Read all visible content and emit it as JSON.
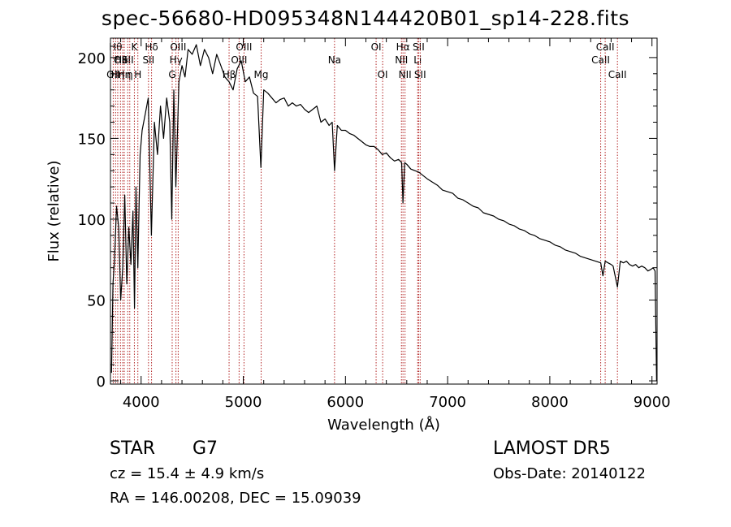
{
  "chart_data": {
    "type": "line",
    "title": "spec-56680-HD095348N144420B01_sp14-228.fits",
    "xlabel": "Wavelength (Å)",
    "ylabel": "Flux (relative)",
    "xlim": [
      3700,
      9050
    ],
    "ylim": [
      -2,
      212
    ],
    "x_ticks": [
      4000,
      5000,
      6000,
      7000,
      8000,
      9000
    ],
    "y_ticks": [
      0,
      50,
      100,
      150,
      200
    ],
    "grid": false,
    "line_color": "#000000",
    "marker_color": "#b22222",
    "series": [
      {
        "x": [
          3710,
          3725,
          3740,
          3760,
          3780,
          3800,
          3820,
          3840,
          3860,
          3880,
          3900,
          3920,
          3935,
          3950,
          3968,
          3990,
          4010,
          4040,
          4070,
          4101,
          4130,
          4160,
          4190,
          4220,
          4250,
          4280,
          4300,
          4320,
          4340,
          4370,
          4400,
          4430,
          4460,
          4500,
          4540,
          4580,
          4620,
          4660,
          4700,
          4740,
          4780,
          4820,
          4861,
          4900,
          4940,
          4980,
          5020,
          5060,
          5100,
          5140,
          5172,
          5200,
          5240,
          5280,
          5320,
          5360,
          5400,
          5440,
          5480,
          5520,
          5560,
          5600,
          5640,
          5680,
          5720,
          5760,
          5800,
          5840,
          5870,
          5893,
          5920,
          5960,
          6000,
          6040,
          6080,
          6120,
          6160,
          6200,
          6240,
          6280,
          6320,
          6360,
          6400,
          6440,
          6480,
          6520,
          6550,
          6563,
          6580,
          6600,
          6640,
          6680,
          6720,
          6760,
          6800,
          6850,
          6900,
          6950,
          7000,
          7050,
          7100,
          7150,
          7200,
          7250,
          7300,
          7350,
          7400,
          7450,
          7500,
          7550,
          7600,
          7650,
          7700,
          7750,
          7800,
          7850,
          7900,
          7950,
          8000,
          8050,
          8100,
          8150,
          8200,
          8250,
          8300,
          8350,
          8400,
          8450,
          8498,
          8520,
          8542,
          8570,
          8600,
          8620,
          8662,
          8690,
          8720,
          8750,
          8780,
          8810,
          8840,
          8870,
          8900,
          8930,
          8960,
          8990,
          9010,
          9030,
          9045
        ],
        "y": [
          5,
          60,
          75,
          108,
          95,
          50,
          70,
          115,
          60,
          95,
          72,
          105,
          45,
          120,
          70,
          140,
          155,
          165,
          175,
          90,
          160,
          140,
          170,
          150,
          175,
          160,
          100,
          180,
          120,
          185,
          195,
          188,
          205,
          202,
          208,
          195,
          205,
          200,
          190,
          202,
          195,
          188,
          185,
          180,
          193,
          198,
          185,
          188,
          178,
          176,
          132,
          180,
          178,
          175,
          172,
          174,
          175,
          170,
          172,
          170,
          171,
          168,
          166,
          168,
          170,
          160,
          162,
          158,
          160,
          130,
          158,
          155,
          155,
          153,
          152,
          150,
          148,
          146,
          145,
          145,
          143,
          140,
          141,
          138,
          136,
          137,
          135,
          110,
          135,
          134,
          131,
          130,
          129,
          127,
          125,
          123,
          121,
          118,
          117,
          116,
          113,
          112,
          110,
          108,
          107,
          104,
          103,
          102,
          100,
          99,
          97,
          96,
          94,
          93,
          91,
          90,
          88,
          87,
          86,
          84,
          83,
          81,
          80,
          79,
          77,
          76,
          75,
          74,
          73,
          65,
          74,
          73,
          72,
          71,
          58,
          74,
          73,
          74,
          72,
          71,
          72,
          70,
          71,
          70,
          68,
          69,
          70,
          68,
          0
        ]
      }
    ],
    "line_markers": [
      {
        "wl": 3727,
        "label": "OII",
        "row": 3
      },
      {
        "wl": 3750,
        "label": "Hθ",
        "row": 1
      },
      {
        "wl": 3771,
        "label": "Hη",
        "row": 3
      },
      {
        "wl": 3798,
        "label": "OII",
        "row": 2
      },
      {
        "wl": 3820,
        "label": "HeI",
        "row": 2
      },
      {
        "wl": 3835,
        "label": "Hη",
        "row": 3
      },
      {
        "wl": 3869,
        "label": "SII",
        "row": 2
      },
      {
        "wl": 3889,
        "label": "η",
        "row": 3
      },
      {
        "wl": 3934,
        "label": "K",
        "row": 1
      },
      {
        "wl": 3968,
        "label": "H",
        "row": 3
      },
      {
        "wl": 4072,
        "label": "SII",
        "row": 2
      },
      {
        "wl": 4102,
        "label": "Hδ",
        "row": 1
      },
      {
        "wl": 4304,
        "label": "G",
        "row": 3
      },
      {
        "wl": 4341,
        "label": "Hγ",
        "row": 2
      },
      {
        "wl": 4363,
        "label": "OIII",
        "row": 1
      },
      {
        "wl": 4861,
        "label": "Hβ",
        "row": 3
      },
      {
        "wl": 4959,
        "label": "OIII",
        "row": 2
      },
      {
        "wl": 5007,
        "label": "OIII",
        "row": 1
      },
      {
        "wl": 5175,
        "label": "Mg",
        "row": 3
      },
      {
        "wl": 5893,
        "label": "Na",
        "row": 2
      },
      {
        "wl": 6300,
        "label": "OI",
        "row": 1
      },
      {
        "wl": 6364,
        "label": "OI",
        "row": 3
      },
      {
        "wl": 6548,
        "label": "NII",
        "row": 2
      },
      {
        "wl": 6563,
        "label": "Hα",
        "row": 1
      },
      {
        "wl": 6583,
        "label": "NII",
        "row": 3
      },
      {
        "wl": 6707,
        "label": "Li",
        "row": 2
      },
      {
        "wl": 6716,
        "label": "SII",
        "row": 1
      },
      {
        "wl": 6731,
        "label": "SII",
        "row": 3
      },
      {
        "wl": 8498,
        "label": "CaII",
        "row": 2
      },
      {
        "wl": 8542,
        "label": "CaII",
        "row": 1
      },
      {
        "wl": 8662,
        "label": "CaII",
        "row": 3
      }
    ]
  },
  "info": {
    "object_class": "STAR",
    "subclass": "G7",
    "survey": "LAMOST DR5",
    "redshift": "cz = 15.4 ± 4.9 km/s",
    "obs_date": "Obs-Date: 20140122",
    "coords": "RA = 146.00208, DEC =  15.09039"
  }
}
